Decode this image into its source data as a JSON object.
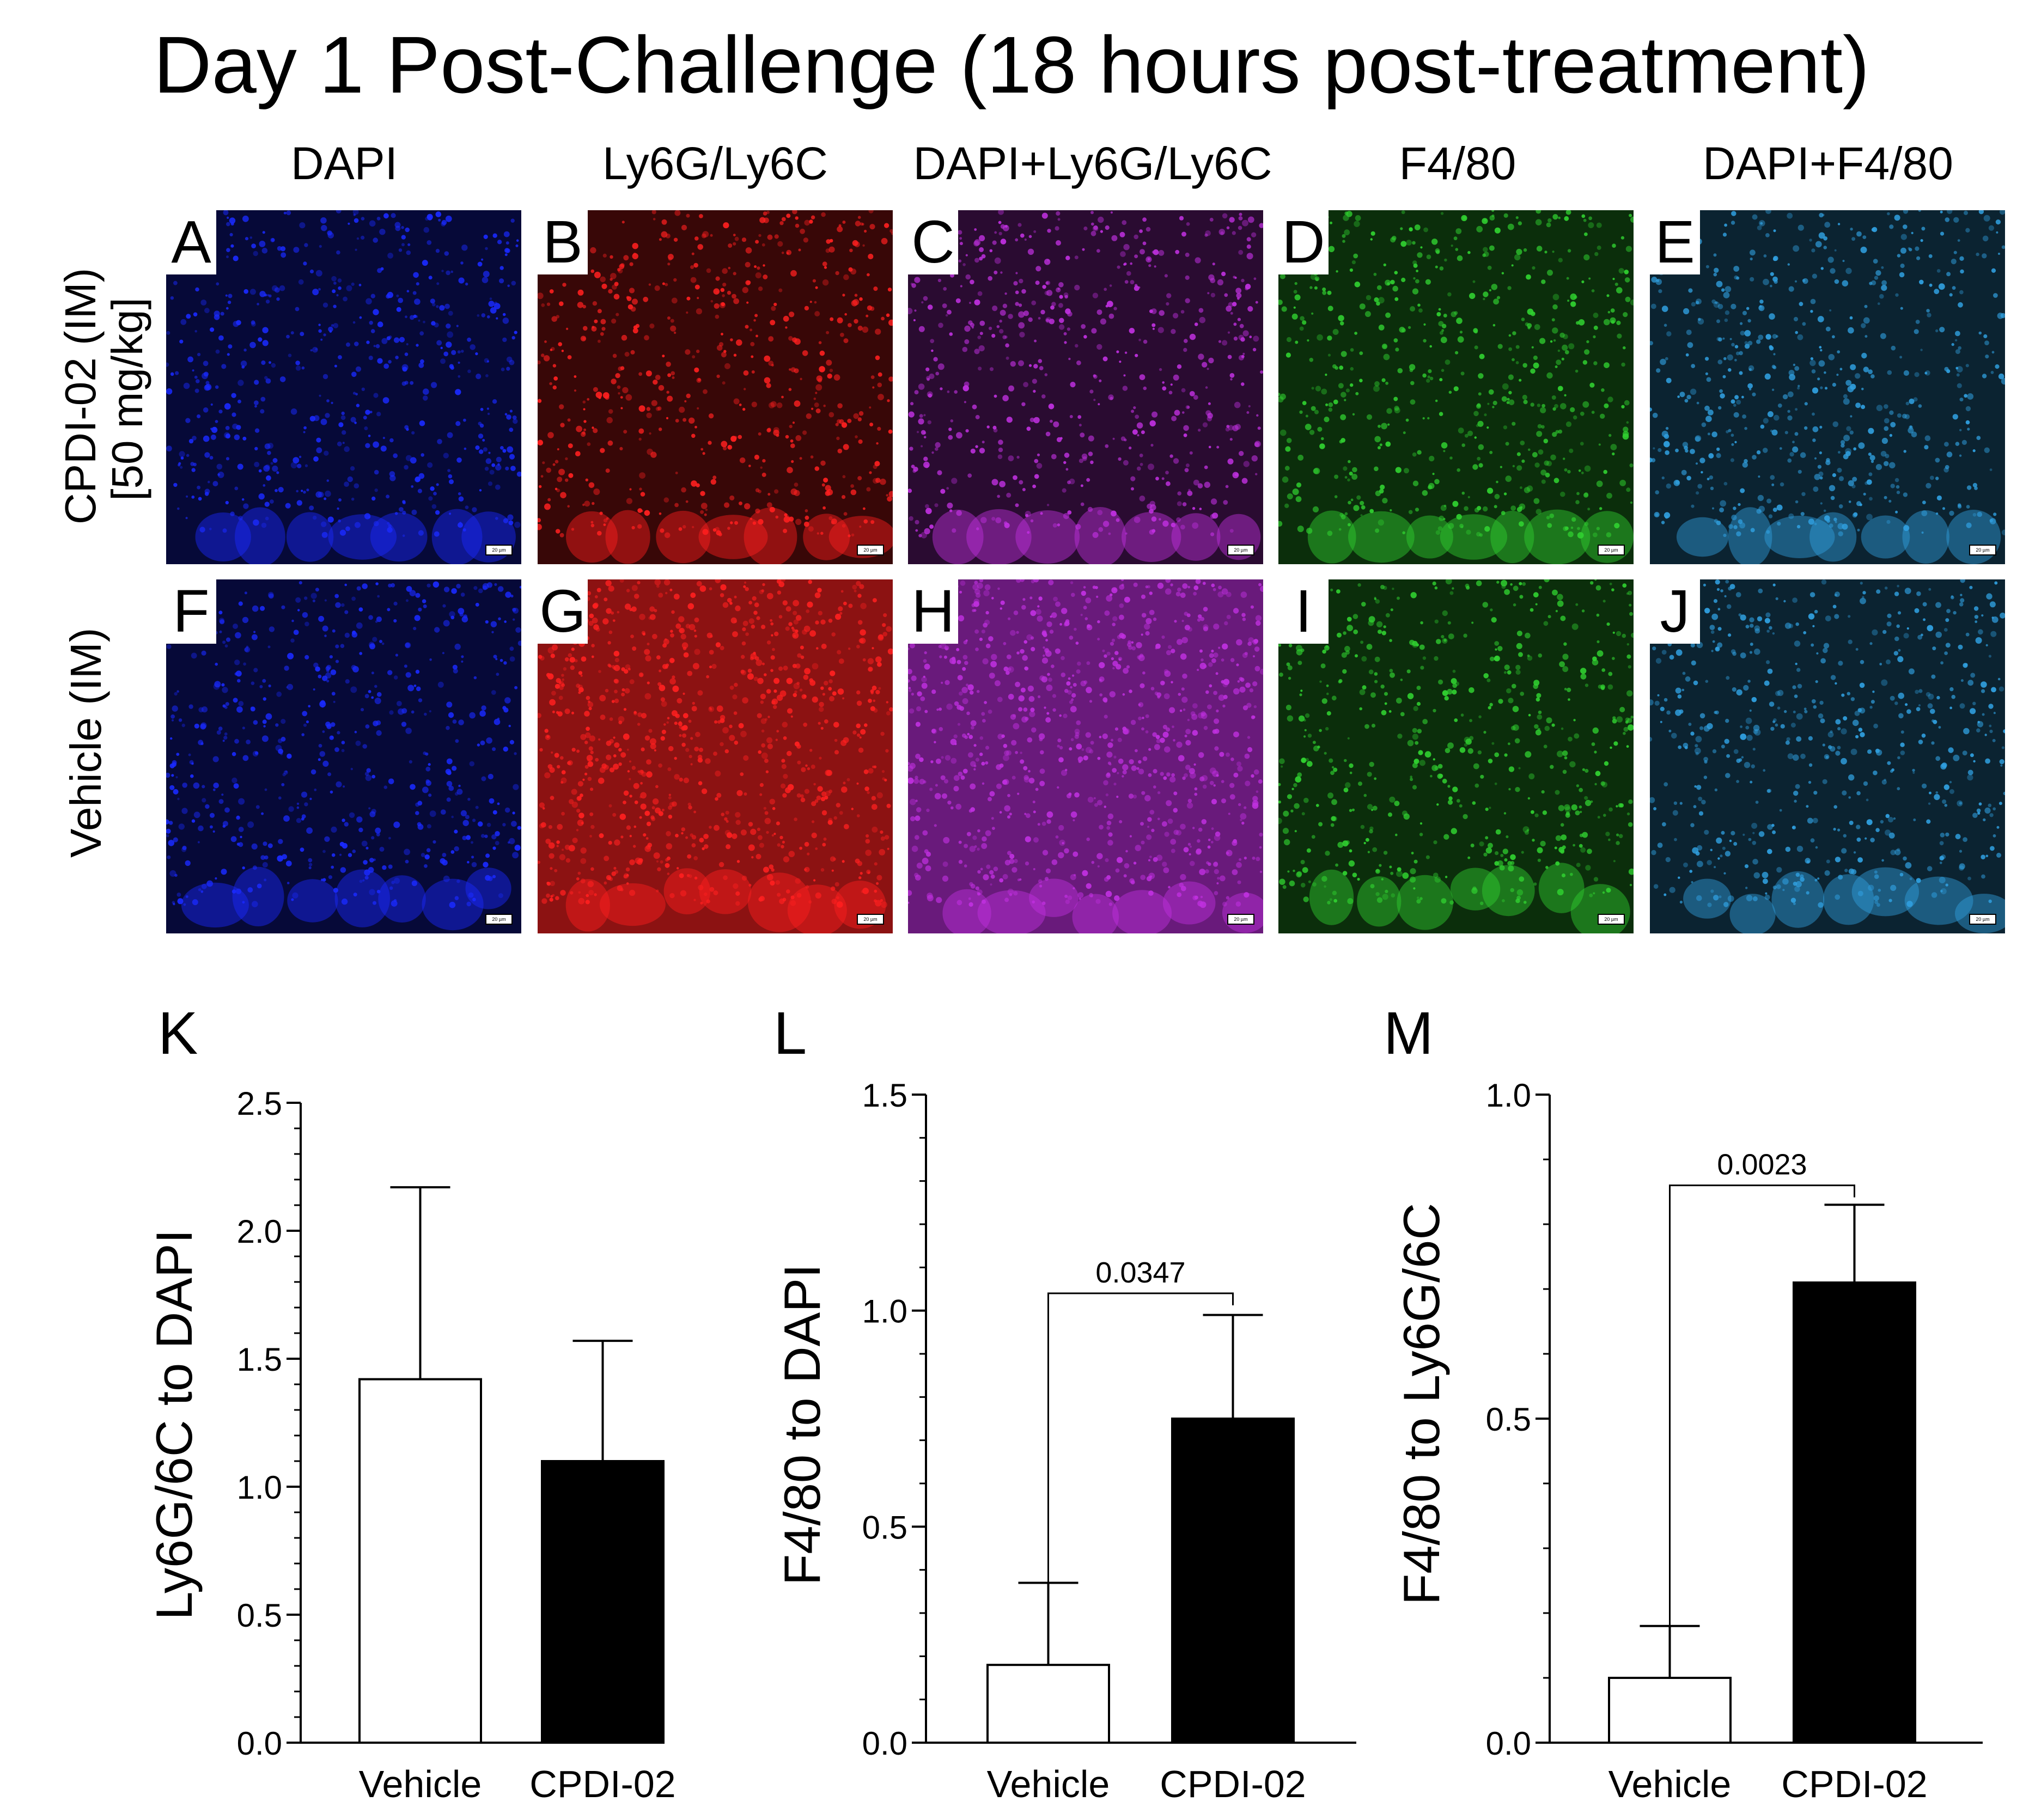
{
  "figure_title": "Day 1 Post-Challenge (18 hours post-treatment)",
  "columns": [
    "DAPI",
    "Ly6G/Ly6C",
    "DAPI+Ly6G/Ly6C",
    "F4/80",
    "DAPI+F4/80"
  ],
  "rows": [
    {
      "label_line1": "CPDI-02 (IM)",
      "label_line2": "[50 mg/kg]",
      "panels": [
        "A",
        "B",
        "C",
        "D",
        "E"
      ]
    },
    {
      "label_line1": "Vehicle (IM)",
      "label_line2": "",
      "panels": [
        "F",
        "G",
        "H",
        "I",
        "J"
      ]
    }
  ],
  "scale_bar_label": "20 µm",
  "colors": {
    "DAPI": "#1a2aff",
    "Ly6G/Ly6C": "#ff2020",
    "DAPI+Ly6G/Ly6C": "#c030e0",
    "F4/80": "#30d030",
    "DAPI+F4/80": "#30a0e0"
  },
  "chart_data": [
    {
      "panel": "K",
      "type": "bar",
      "categories": [
        "Vehicle",
        "CPDI-02"
      ],
      "values": [
        1.42,
        1.1
      ],
      "error": [
        0.75,
        0.47
      ],
      "ylabel": "Ly6G/6C to DAPI",
      "ylim": [
        0,
        2.5
      ],
      "yticks": [
        "0.0",
        "0.5",
        "1.0",
        "1.5",
        "2.0",
        "2.5"
      ],
      "ytick_values": [
        0,
        0.5,
        1.0,
        1.5,
        2.0,
        2.5
      ],
      "minor_step": 0.1,
      "bar_fills": [
        "#ffffff",
        "#000000"
      ],
      "significance": null
    },
    {
      "panel": "L",
      "type": "bar",
      "categories": [
        "Vehicle",
        "CPDI-02"
      ],
      "values": [
        0.18,
        0.75
      ],
      "error": [
        0.19,
        0.24
      ],
      "ylabel": "F4/80 to DAPI",
      "ylim": [
        0,
        1.5
      ],
      "yticks": [
        "0.0",
        "0.5",
        "1.0",
        "1.5"
      ],
      "ytick_values": [
        0,
        0.5,
        1.0,
        1.5
      ],
      "minor_step": 0.1,
      "bar_fills": [
        "#ffffff",
        "#000000"
      ],
      "significance": {
        "p_value": "0.0347",
        "level": 1.04
      }
    },
    {
      "panel": "M",
      "type": "bar",
      "categories": [
        "Vehicle",
        "CPDI-02"
      ],
      "values": [
        0.1,
        0.71
      ],
      "error": [
        0.08,
        0.12
      ],
      "ylabel": "F4/80 to Ly6G/6C",
      "ylim": [
        0,
        1.0
      ],
      "yticks": [
        "0.0",
        "0.5",
        "1.0"
      ],
      "ytick_values": [
        0,
        0.5,
        1.0
      ],
      "minor_step": 0.1,
      "bar_fills": [
        "#ffffff",
        "#000000"
      ],
      "significance": {
        "p_value": "0.0023",
        "level": 0.86
      }
    }
  ]
}
